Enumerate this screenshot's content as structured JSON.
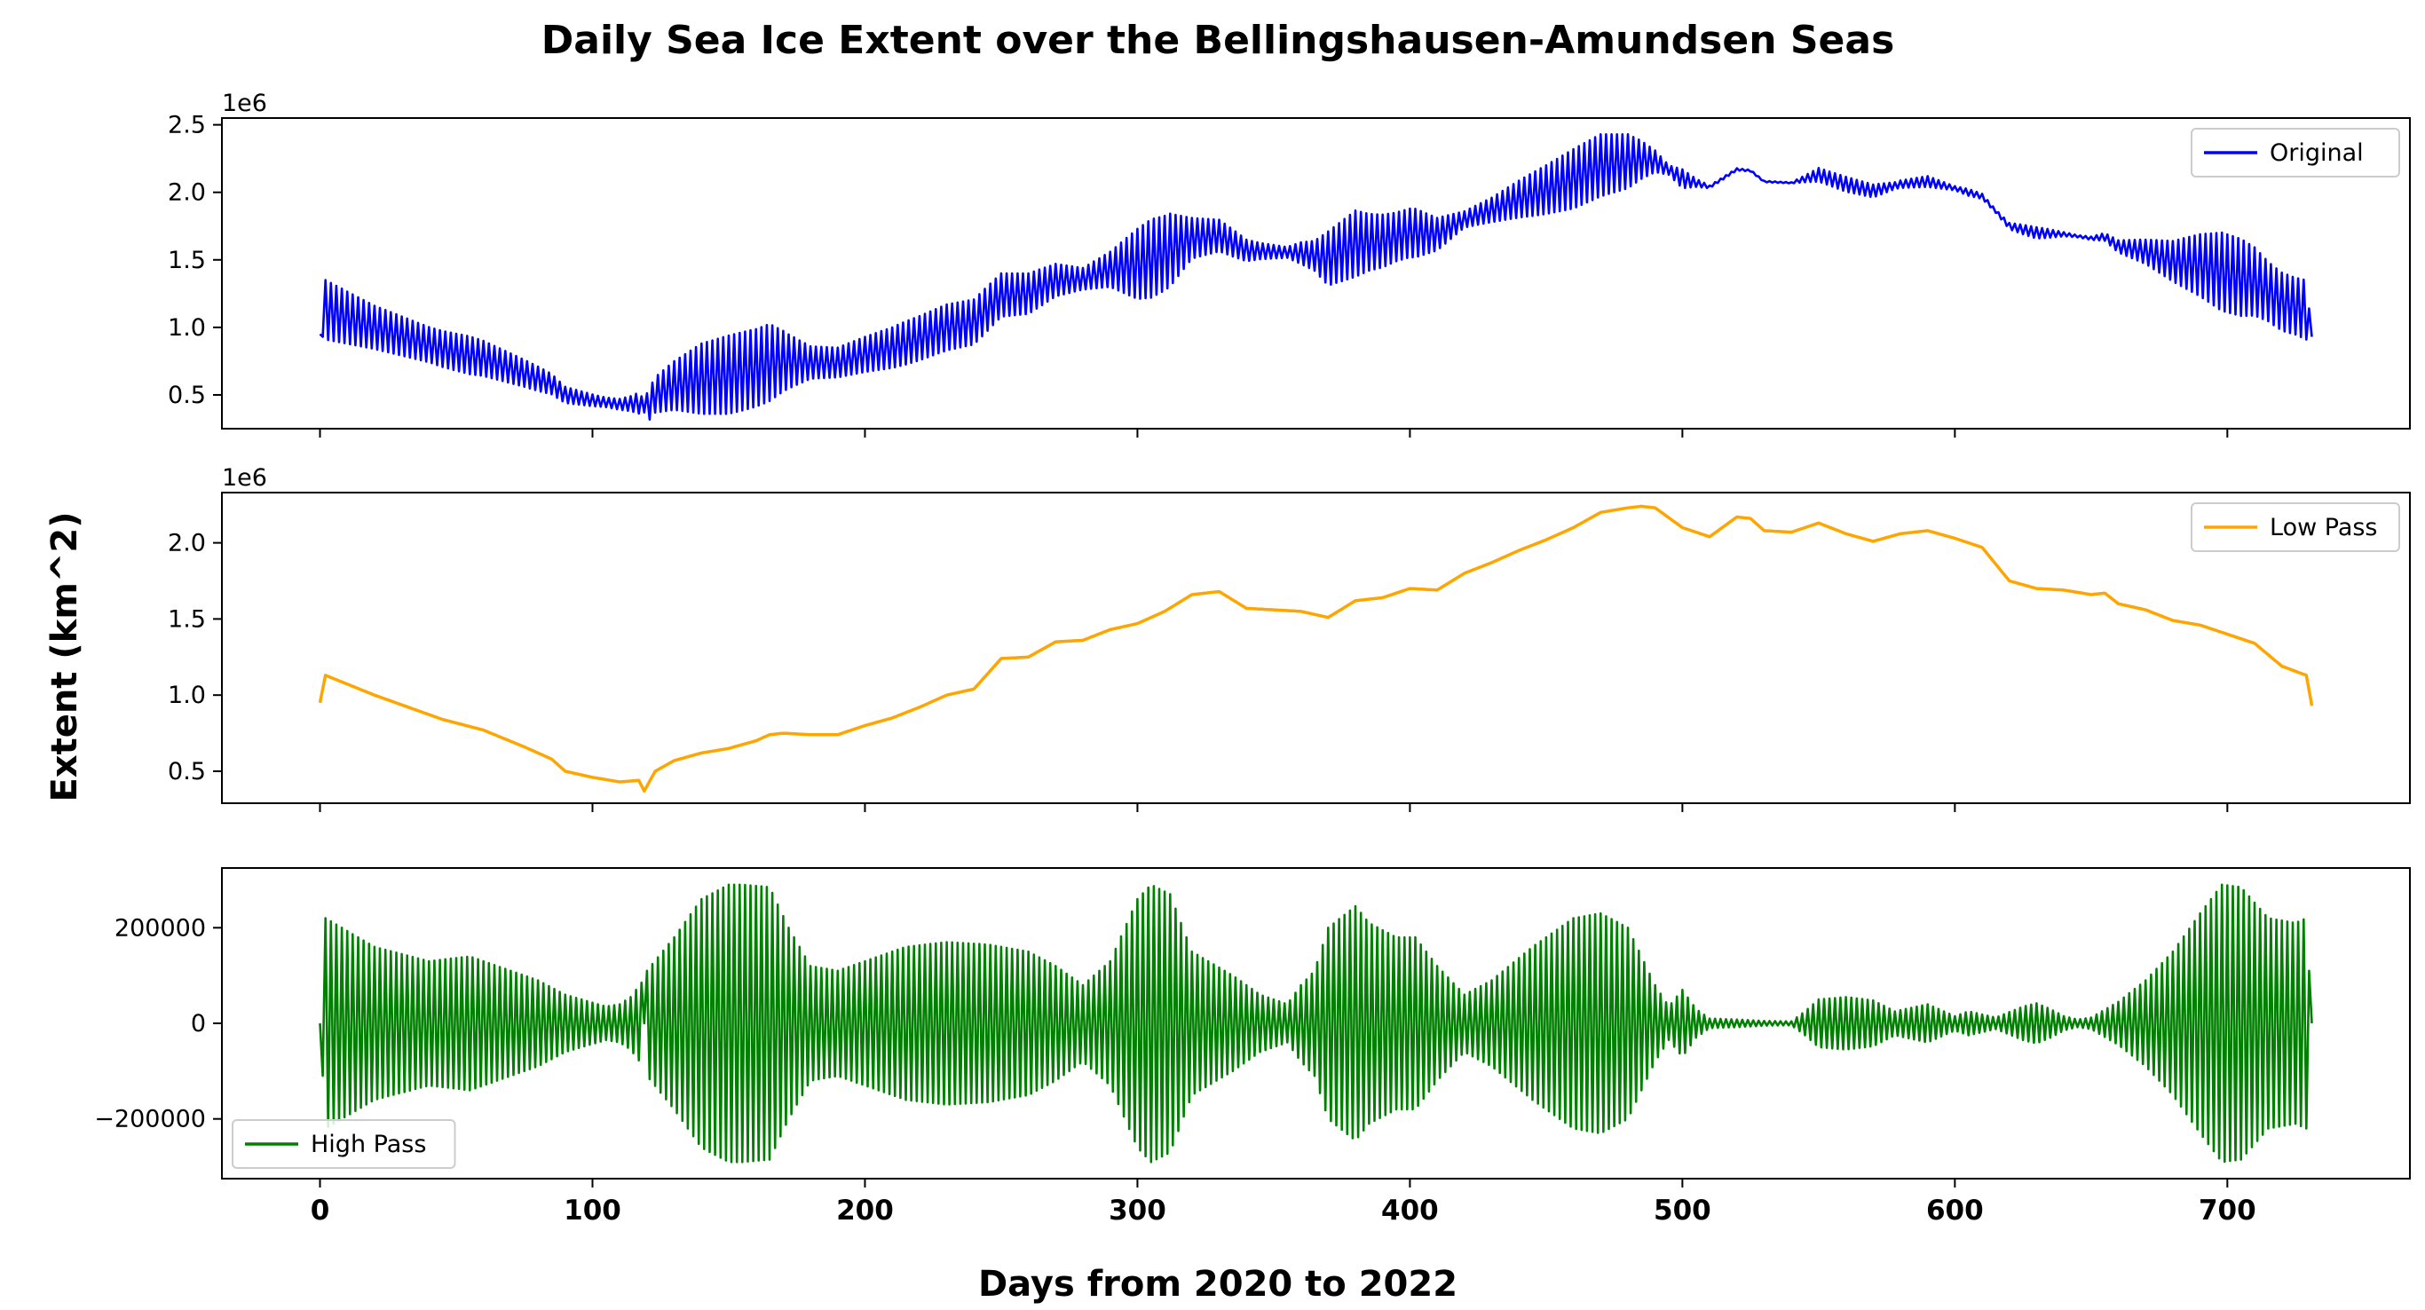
{
  "figure": {
    "title": "Daily Sea Ice Extent over the Bellingshausen-Amundsen Seas",
    "xlabel": "Days from 2020 to 2022",
    "ylabel": "Extent (km^2)"
  },
  "chart_data": [
    {
      "type": "line",
      "series": [
        {
          "name": "Original",
          "color": "#0000ff"
        }
      ],
      "x_range": [
        0,
        731
      ],
      "ylim": [
        250000,
        2550000
      ],
      "yticks": [
        500000,
        1000000,
        1500000,
        2000000,
        2500000
      ],
      "ytick_labels": [
        "0.5",
        "1.0",
        "1.5",
        "2.0",
        "2.5"
      ],
      "offset_label": "1e6",
      "legend": "upper right",
      "oscillation": "daily values alternate above and below the smooth trend; amplitude envelope equals the High Pass panel",
      "trend_days": [
        0,
        2,
        20,
        45,
        60,
        75,
        85,
        90,
        100,
        110,
        117,
        119,
        123,
        130,
        140,
        150,
        160,
        165,
        170,
        180,
        190,
        200,
        210,
        220,
        230,
        240,
        250,
        260,
        270,
        280,
        290,
        300,
        310,
        320,
        330,
        340,
        350,
        360,
        370,
        380,
        390,
        400,
        410,
        420,
        430,
        440,
        450,
        460,
        470,
        480,
        485,
        490,
        500,
        510,
        520,
        525,
        530,
        540,
        550,
        560,
        570,
        580,
        590,
        600,
        610,
        620,
        630,
        640,
        650,
        655,
        660,
        670,
        680,
        690,
        700,
        710,
        720,
        729,
        731
      ],
      "trend_values": [
        950000,
        1130000,
        1000000,
        840000,
        770000,
        660000,
        580000,
        500000,
        460000,
        430000,
        440000,
        370000,
        500000,
        570000,
        620000,
        650000,
        700000,
        740000,
        750000,
        740000,
        740000,
        800000,
        850000,
        920000,
        1000000,
        1040000,
        1240000,
        1250000,
        1350000,
        1360000,
        1430000,
        1470000,
        1550000,
        1660000,
        1680000,
        1570000,
        1560000,
        1550000,
        1510000,
        1620000,
        1640000,
        1700000,
        1690000,
        1800000,
        1870000,
        1950000,
        2020000,
        2100000,
        2200000,
        2230000,
        2240000,
        2230000,
        2100000,
        2040000,
        2170000,
        2160000,
        2080000,
        2070000,
        2130000,
        2060000,
        2010000,
        2060000,
        2080000,
        2030000,
        1970000,
        1750000,
        1700000,
        1690000,
        1660000,
        1670000,
        1600000,
        1560000,
        1490000,
        1460000,
        1400000,
        1340000,
        1190000,
        1130000,
        930000
      ]
    },
    {
      "type": "line",
      "series": [
        {
          "name": "Low Pass",
          "color": "#ffa500"
        }
      ],
      "x_range": [
        0,
        731
      ],
      "ylim": [
        290000,
        2330000
      ],
      "yticks": [
        500000,
        1000000,
        1500000,
        2000000
      ],
      "ytick_labels": [
        "0.5",
        "1.0",
        "1.5",
        "2.0"
      ],
      "offset_label": "1e6",
      "legend": "upper right",
      "x": [
        0,
        2,
        20,
        45,
        60,
        75,
        85,
        90,
        100,
        110,
        117,
        119,
        123,
        130,
        140,
        150,
        160,
        165,
        170,
        180,
        190,
        200,
        210,
        220,
        230,
        240,
        250,
        260,
        270,
        280,
        290,
        300,
        310,
        320,
        330,
        340,
        350,
        360,
        370,
        380,
        390,
        400,
        410,
        420,
        430,
        440,
        450,
        460,
        470,
        480,
        485,
        490,
        500,
        510,
        520,
        525,
        530,
        540,
        550,
        560,
        570,
        580,
        590,
        600,
        610,
        620,
        630,
        640,
        650,
        655,
        660,
        670,
        680,
        690,
        700,
        710,
        720,
        729,
        731
      ],
      "y": [
        950000,
        1130000,
        1000000,
        840000,
        770000,
        660000,
        580000,
        500000,
        460000,
        430000,
        440000,
        370000,
        500000,
        570000,
        620000,
        650000,
        700000,
        740000,
        750000,
        740000,
        740000,
        800000,
        850000,
        920000,
        1000000,
        1040000,
        1240000,
        1250000,
        1350000,
        1360000,
        1430000,
        1470000,
        1550000,
        1660000,
        1680000,
        1570000,
        1560000,
        1550000,
        1510000,
        1620000,
        1640000,
        1700000,
        1690000,
        1800000,
        1870000,
        1950000,
        2020000,
        2100000,
        2200000,
        2230000,
        2240000,
        2230000,
        2100000,
        2040000,
        2170000,
        2160000,
        2080000,
        2070000,
        2130000,
        2060000,
        2010000,
        2060000,
        2080000,
        2030000,
        1970000,
        1750000,
        1700000,
        1690000,
        1660000,
        1670000,
        1600000,
        1560000,
        1490000,
        1460000,
        1400000,
        1340000,
        1190000,
        1130000,
        930000
      ]
    },
    {
      "type": "line",
      "series": [
        {
          "name": "High Pass",
          "color": "#008000"
        }
      ],
      "x_range": [
        0,
        731
      ],
      "ylim": [
        -325000,
        325000
      ],
      "yticks": [
        -200000,
        0,
        200000
      ],
      "ytick_labels": [
        "−200000",
        "0",
        "200000"
      ],
      "legend": "lower left",
      "oscillation": "values alternate sign roughly every day; envelope gives the amplitude",
      "envelope_days": [
        0,
        2,
        20,
        40,
        55,
        65,
        80,
        90,
        105,
        110,
        114,
        118,
        119,
        120,
        130,
        140,
        150,
        155,
        165,
        172,
        180,
        190,
        200,
        215,
        230,
        245,
        260,
        270,
        280,
        290,
        300,
        305,
        312,
        320,
        335,
        345,
        355,
        360,
        365,
        370,
        380,
        385,
        395,
        402,
        410,
        420,
        430,
        445,
        460,
        470,
        480,
        490,
        495,
        500,
        505,
        510,
        520,
        530,
        540,
        545,
        550,
        560,
        570,
        578,
        590,
        600,
        605,
        615,
        625,
        630,
        635,
        640,
        645,
        650,
        660,
        670,
        680,
        690,
        698,
        705,
        715,
        725,
        729,
        731
      ],
      "envelope_amplitude": [
        0,
        220000,
        160000,
        130000,
        140000,
        120000,
        90000,
        60000,
        35000,
        40000,
        55000,
        85000,
        0,
        110000,
        180000,
        260000,
        290000,
        290000,
        285000,
        200000,
        120000,
        110000,
        130000,
        160000,
        170000,
        165000,
        150000,
        120000,
        80000,
        130000,
        260000,
        290000,
        270000,
        150000,
        100000,
        60000,
        40000,
        80000,
        110000,
        200000,
        245000,
        210000,
        180000,
        180000,
        120000,
        60000,
        90000,
        160000,
        220000,
        230000,
        200000,
        80000,
        35000,
        70000,
        30000,
        10000,
        8000,
        5000,
        4000,
        25000,
        50000,
        55000,
        48000,
        25000,
        40000,
        15000,
        25000,
        12000,
        35000,
        42000,
        30000,
        15000,
        8000,
        12000,
        45000,
        90000,
        150000,
        230000,
        290000,
        285000,
        220000,
        210000,
        220000,
        0
      ]
    }
  ],
  "x_axis": {
    "ticks": [
      0,
      100,
      200,
      300,
      400,
      500,
      600,
      700
    ],
    "tick_labels": [
      "0",
      "100",
      "200",
      "300",
      "400",
      "500",
      "600",
      "700"
    ],
    "xlim": [
      -36,
      767
    ]
  }
}
